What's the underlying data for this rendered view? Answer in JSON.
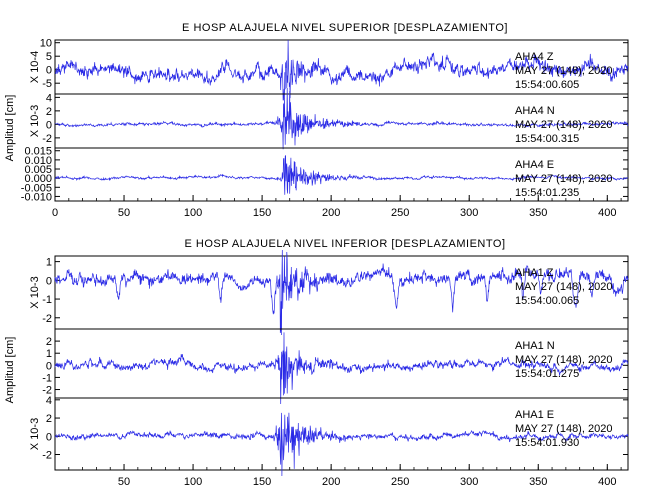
{
  "colors": {
    "trace": "#2a2ae6",
    "frame": "#000000",
    "background": "#ffffff"
  },
  "chart_data": [
    {
      "type": "line",
      "title": "E HOSP ALAJUELA NIVEL SUPERIOR [DESPLAZAMIENTO]",
      "ylabel": "Amplitud [cm]",
      "xlim": [
        0,
        415
      ],
      "x_ticks": [
        "0",
        "50",
        "100",
        "150",
        "200",
        "250",
        "300",
        "350",
        "400"
      ],
      "shared_x": true,
      "event_time_s": 165,
      "series": [
        {
          "name": "AHA4 Z",
          "scale_label": "X 10-4",
          "y_ticks": [
            "10",
            "5",
            "0",
            "-5"
          ],
          "ylim": [
            -9,
            11
          ],
          "date": "MAY 27 (148), 2020",
          "time": "15:54:00.605",
          "noise_amp": 3.5,
          "burst_amp": 7
        },
        {
          "name": "AHA4 N",
          "scale_label": "X 10-3",
          "y_ticks": [
            "4",
            "2",
            "0",
            "-2"
          ],
          "ylim": [
            -3.5,
            4.5
          ],
          "date": "MAY 27 (148), 2020",
          "time": "15:54:00.315",
          "noise_amp": 0.3,
          "burst_amp": 3.5
        },
        {
          "name": "AHA4 E",
          "y_ticks": [
            "0.015",
            "0.010",
            "0.005",
            "0.000",
            "-0.005",
            "-0.010"
          ],
          "ylim": [
            -0.0125,
            0.0165
          ],
          "date": "MAY 27 (148), 2020",
          "time": "15:54:01.235",
          "noise_amp": 0.0009,
          "burst_amp": 0.012
        }
      ]
    },
    {
      "type": "line",
      "title": "E HOSP ALAJUELA NIVEL INFERIOR [DESPLAZAMIENTO]",
      "ylabel": "Amplitud [cm]",
      "xlim": [
        0,
        415
      ],
      "x_ticks": [
        "50",
        "100",
        "150",
        "200",
        "250",
        "300",
        "350",
        "400"
      ],
      "shared_x": true,
      "event_time_s": 163,
      "series": [
        {
          "name": "AHA1 Z",
          "scale_label": "X 10-3",
          "y_ticks": [
            "1",
            "0",
            "-1",
            "-2"
          ],
          "ylim": [
            -2.6,
            1.3
          ],
          "date": "MAY 27 (148), 2020",
          "time": "15:54:00.065",
          "noise_amp": 0.45,
          "burst_amp": 1.6
        },
        {
          "name": "AHA1 N",
          "y_ticks": [
            "2",
            "1",
            "0",
            "-1",
            "-2"
          ],
          "ylim": [
            -2.7,
            3.0
          ],
          "date": "MAY 27 (148), 2020",
          "time": "15:54:01.275",
          "noise_amp": 0.45,
          "burst_amp": 2.3
        },
        {
          "name": "AHA1 E",
          "scale_label": "X 10-3",
          "y_ticks": [
            "4",
            "2",
            "0",
            "-2"
          ],
          "ylim": [
            -3.7,
            4.2
          ],
          "date": "MAY 27 (148), 2020",
          "time": "15:54:01.930",
          "noise_amp": 0.4,
          "burst_amp": 3.2
        }
      ]
    }
  ]
}
